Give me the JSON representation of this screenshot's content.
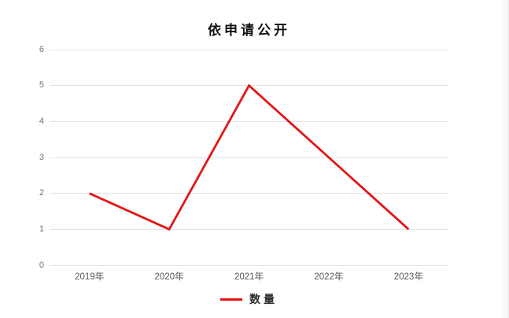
{
  "chart_data": {
    "type": "line",
    "title": "依申请公开",
    "categories": [
      "2019年",
      "2020年",
      "2021年",
      "2022年",
      "2023年"
    ],
    "series": [
      {
        "name": "数量",
        "color": "#e41414",
        "values": [
          2,
          1,
          5,
          3,
          1
        ]
      }
    ],
    "xlabel": "",
    "ylabel": "",
    "ylim": [
      0,
      6
    ],
    "ytick_step": 1,
    "yticks": [
      0,
      1,
      2,
      3,
      4,
      5,
      6
    ],
    "grid": "horizontal",
    "legend_position": "bottom-center"
  },
  "colors": {
    "series_red": "#e41414",
    "gridline": "#e3e3e3",
    "tick_text": "#6f6f6f",
    "title_text": "#111111",
    "background": "#ffffff"
  }
}
